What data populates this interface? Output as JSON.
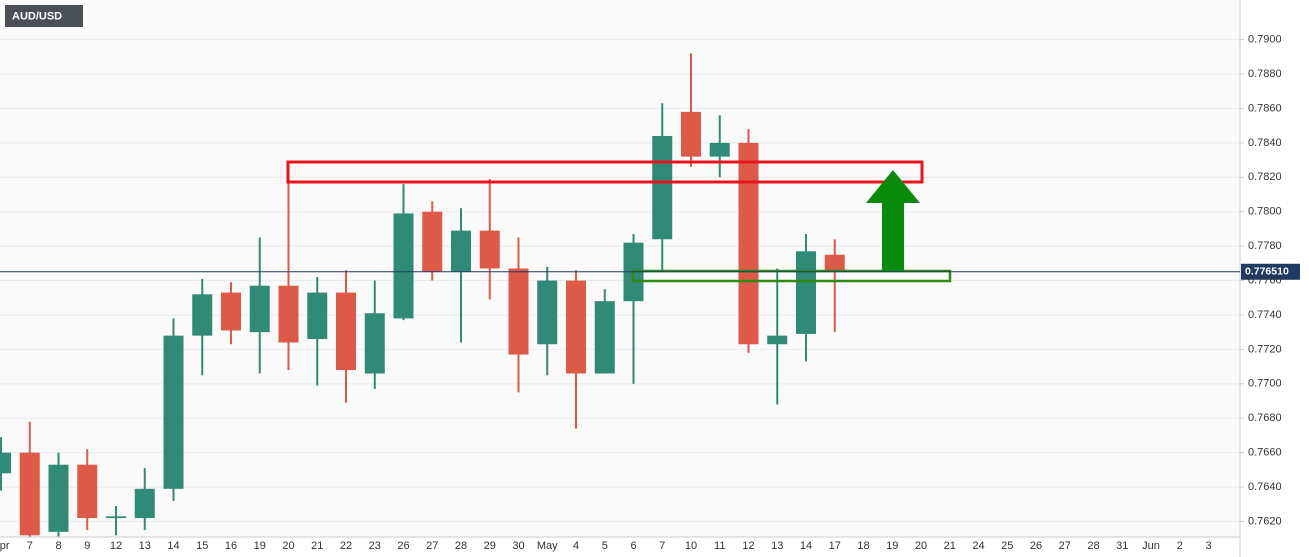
{
  "chart_data": {
    "type": "candlestick",
    "title": "AUD/USD",
    "categories": [
      "Apr",
      "7",
      "8",
      "9",
      "12",
      "13",
      "14",
      "15",
      "16",
      "19",
      "20",
      "21",
      "22",
      "23",
      "26",
      "27",
      "28",
      "29",
      "30",
      "May",
      "4",
      "5",
      "6",
      "7",
      "10",
      "11",
      "12",
      "13",
      "14",
      "17",
      "18",
      "19",
      "20",
      "21",
      "24",
      "25",
      "26",
      "27",
      "28",
      "31",
      "Jun",
      "2",
      "3"
    ],
    "series": [
      {
        "name": "AUD/USD",
        "open": [
          0.7648,
          0.766,
          0.7614,
          0.7653,
          0.7622,
          0.7622,
          0.7639,
          0.7728,
          0.7753,
          0.773,
          0.7757,
          0.7726,
          0.7753,
          0.7706,
          0.7738,
          0.78,
          0.7765,
          0.7789,
          0.7767,
          0.7723,
          0.776,
          0.7706,
          0.7748,
          0.7784,
          0.7858,
          0.7832,
          0.784,
          0.7723,
          0.7729,
          0.7775,
          null,
          null,
          null,
          null,
          null,
          null,
          null,
          null,
          null,
          null,
          null,
          null,
          null
        ],
        "high": [
          0.7669,
          0.7678,
          0.766,
          0.7662,
          0.7629,
          0.7651,
          0.7738,
          0.7761,
          0.7759,
          0.7785,
          0.7828,
          0.7762,
          0.7766,
          0.776,
          0.7816,
          0.7806,
          0.7802,
          0.7819,
          0.7785,
          0.7768,
          0.7766,
          0.7755,
          0.7787,
          0.7863,
          0.7892,
          0.7856,
          0.7848,
          0.7767,
          0.7787,
          0.7784,
          null,
          null,
          null,
          null,
          null,
          null,
          null,
          null,
          null,
          null,
          null,
          null,
          null
        ],
        "low": [
          0.7638,
          0.7605,
          0.7608,
          0.7615,
          0.7612,
          0.7615,
          0.7632,
          0.7705,
          0.7723,
          0.7706,
          0.7708,
          0.7699,
          0.7689,
          0.7697,
          0.7737,
          0.776,
          0.7724,
          0.7749,
          0.7695,
          0.7705,
          0.7674,
          0.7706,
          0.77,
          0.7766,
          0.7826,
          0.782,
          0.7718,
          0.7688,
          0.7713,
          0.773,
          null,
          null,
          null,
          null,
          null,
          null,
          null,
          null,
          null,
          null,
          null,
          null,
          null
        ],
        "close": [
          0.766,
          0.7612,
          0.7653,
          0.7622,
          0.7623,
          0.7639,
          0.7728,
          0.7752,
          0.7731,
          0.7757,
          0.7724,
          0.7753,
          0.7708,
          0.7741,
          0.7799,
          0.7765,
          0.7789,
          0.7767,
          0.7717,
          0.776,
          0.7706,
          0.7748,
          0.7782,
          0.7844,
          0.7832,
          0.784,
          0.7723,
          0.7728,
          0.7777,
          0.7766,
          null,
          null,
          null,
          null,
          null,
          null,
          null,
          null,
          null,
          null,
          null,
          null,
          null
        ]
      }
    ],
    "up_color": "#2f8a76",
    "down_color": "#dc5a47",
    "ylim": [
      0.7611,
      0.7923
    ],
    "yticks": [
      {
        "value": 0.762,
        "label": "0.7620"
      },
      {
        "value": 0.764,
        "label": "0.7640"
      },
      {
        "value": 0.766,
        "label": "0.7660"
      },
      {
        "value": 0.768,
        "label": "0.7680"
      },
      {
        "value": 0.77,
        "label": "0.7700"
      },
      {
        "value": 0.772,
        "label": "0.7720"
      },
      {
        "value": 0.774,
        "label": "0.7740"
      },
      {
        "value": 0.776,
        "label": "0.7760"
      },
      {
        "value": 0.778,
        "label": "0.7780"
      },
      {
        "value": 0.78,
        "label": "0.7800"
      },
      {
        "value": 0.782,
        "label": "0.7820"
      },
      {
        "value": 0.784,
        "label": "0.7840"
      },
      {
        "value": 0.786,
        "label": "0.7860"
      },
      {
        "value": 0.788,
        "label": "0.7880"
      },
      {
        "value": 0.79,
        "label": "0.7900"
      }
    ],
    "last_price": {
      "value": 0.77651,
      "label": "0.776510"
    },
    "grid": true
  }
}
